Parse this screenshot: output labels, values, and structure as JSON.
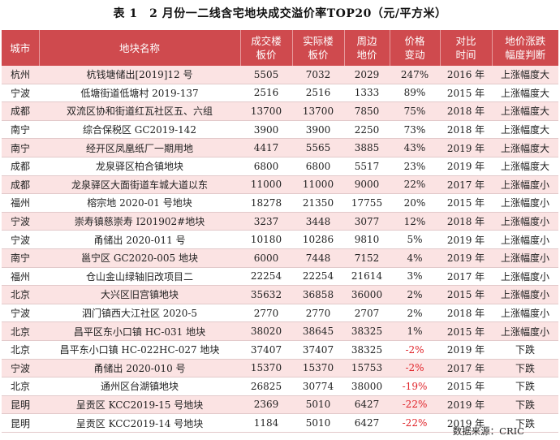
{
  "title": "表 1　2 月份一二线含宅地块成交溢价率TOP20（元/平方米）",
  "columns": [
    "城市",
    "地块名称",
    "成交楼板价",
    "实际楼板价",
    "周边地价",
    "价格变动",
    "对比时间",
    "地价涨跌幅度判断"
  ],
  "column_lines": [
    [
      "城市"
    ],
    [
      "地块名称"
    ],
    [
      "成交楼",
      "板价"
    ],
    [
      "实际楼",
      "板价"
    ],
    [
      "周边",
      "地价"
    ],
    [
      "价格",
      "变动"
    ],
    [
      "对比",
      "时间"
    ],
    [
      "地价涨跌",
      "幅度判断"
    ]
  ],
  "rows": [
    {
      "city": "杭州",
      "name": "杭钱塘储出[2019]12 号",
      "deal": "5505",
      "actual": "7032",
      "nearby": "2029",
      "change": "247%",
      "time": "2016 年",
      "judge": "上涨幅度大"
    },
    {
      "city": "宁波",
      "name": "低塘街道低塘村 2019-137",
      "deal": "2516",
      "actual": "2516",
      "nearby": "1333",
      "change": "89%",
      "time": "2015 年",
      "judge": "上涨幅度大"
    },
    {
      "city": "成都",
      "name": "双流区协和街道红瓦社区五、六组",
      "deal": "13700",
      "actual": "13700",
      "nearby": "7850",
      "change": "75%",
      "time": "2018 年",
      "judge": "上涨幅度大"
    },
    {
      "city": "南宁",
      "name": "综合保税区 GC2019-142",
      "deal": "3900",
      "actual": "3900",
      "nearby": "2250",
      "change": "73%",
      "time": "2018 年",
      "judge": "上涨幅度大"
    },
    {
      "city": "南宁",
      "name": "经开区凤凰纸厂一期用地",
      "deal": "4417",
      "actual": "5565",
      "nearby": "3885",
      "change": "43%",
      "time": "2019 年",
      "judge": "上涨幅度大"
    },
    {
      "city": "成都",
      "name": "龙泉驿区柏合镇地块",
      "deal": "6800",
      "actual": "6800",
      "nearby": "5517",
      "change": "23%",
      "time": "2019 年",
      "judge": "上涨幅度大"
    },
    {
      "city": "成都",
      "name": "龙泉驿区大面街道车城大道以东",
      "deal": "11000",
      "actual": "11000",
      "nearby": "9000",
      "change": "22%",
      "time": "2017 年",
      "judge": "上涨幅度小"
    },
    {
      "city": "福州",
      "name": "榕宗地 2020-01 号地块",
      "deal": "18278",
      "actual": "21350",
      "nearby": "17755",
      "change": "20%",
      "time": "2015 年",
      "judge": "上涨幅度小"
    },
    {
      "city": "宁波",
      "name": "崇寿镇慈崇寿 I201902#地块",
      "deal": "3237",
      "actual": "3448",
      "nearby": "3077",
      "change": "12%",
      "time": "2018 年",
      "judge": "上涨幅度小"
    },
    {
      "city": "宁波",
      "name": "甬储出 2020-011 号",
      "deal": "10180",
      "actual": "10286",
      "nearby": "9810",
      "change": "5%",
      "time": "2019 年",
      "judge": "上涨幅度小"
    },
    {
      "city": "南宁",
      "name": "邕宁区 GC2020-005 地块",
      "deal": "6000",
      "actual": "7448",
      "nearby": "7152",
      "change": "4%",
      "time": "2019 年",
      "judge": "上涨幅度小"
    },
    {
      "city": "福州",
      "name": "仓山金山绿轴旧改项目二",
      "deal": "22254",
      "actual": "22254",
      "nearby": "21614",
      "change": "3%",
      "time": "2017 年",
      "judge": "上涨幅度小"
    },
    {
      "city": "北京",
      "name": "大兴区旧宫镇地块",
      "deal": "35632",
      "actual": "36858",
      "nearby": "36000",
      "change": "2%",
      "time": "2015 年",
      "judge": "上涨幅度小"
    },
    {
      "city": "宁波",
      "name": "泗门镇西大江社区 2020-5",
      "deal": "2770",
      "actual": "2770",
      "nearby": "2707",
      "change": "2%",
      "time": "2018 年",
      "judge": "上涨幅度小"
    },
    {
      "city": "北京",
      "name": "昌平区东小口镇 HC-031 地块",
      "deal": "38020",
      "actual": "38645",
      "nearby": "38325",
      "change": "1%",
      "time": "2015 年",
      "judge": "上涨幅度小"
    },
    {
      "city": "北京",
      "name": "昌平东小口镇 HC-022HC-027 地块",
      "deal": "37407",
      "actual": "37407",
      "nearby": "38325",
      "change": "-2%",
      "time": "2019 年",
      "judge": "下跌"
    },
    {
      "city": "宁波",
      "name": "甬储出 2020-010 号",
      "deal": "15370",
      "actual": "15370",
      "nearby": "15753",
      "change": "-2%",
      "time": "2017 年",
      "judge": "下跌"
    },
    {
      "city": "北京",
      "name": "通州区台湖镇地块",
      "deal": "26825",
      "actual": "30774",
      "nearby": "38000",
      "change": "-19%",
      "time": "2015 年",
      "judge": "下跌"
    },
    {
      "city": "昆明",
      "name": "呈贡区 KCC2019-15 号地块",
      "deal": "2369",
      "actual": "5010",
      "nearby": "6427",
      "change": "-22%",
      "time": "2019 年",
      "judge": "下跌"
    },
    {
      "city": "昆明",
      "name": "呈贡区 KCC2019-14 号地块",
      "deal": "1184",
      "actual": "5010",
      "nearby": "6427",
      "change": "-22%",
      "time": "2019 年",
      "judge": "下跌"
    }
  ],
  "source": "数据来源：CRIC",
  "colors": {
    "header_bg": "#cf4a4e",
    "odd_row_bg": "#fbe3e3",
    "negative_text": "#e0242a"
  }
}
